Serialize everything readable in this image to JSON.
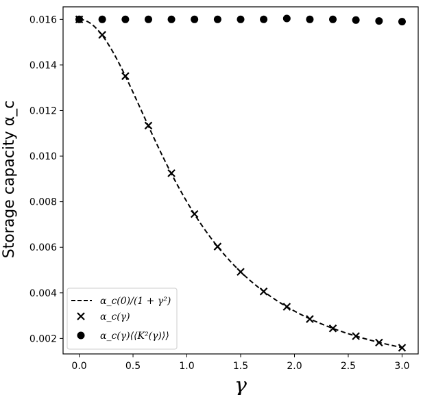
{
  "chart_data": {
    "type": "line",
    "xlabel": "γ",
    "ylabel": "Storage capacity α_c",
    "xlim": [
      -0.15,
      3.15
    ],
    "ylim": [
      0.00132,
      0.01655
    ],
    "x_ticks": [
      "0.0",
      "0.5",
      "1.0",
      "1.5",
      "2.0",
      "2.5",
      "3.0"
    ],
    "x_tick_values": [
      0.0,
      0.5,
      1.0,
      1.5,
      2.0,
      2.5,
      3.0
    ],
    "y_ticks": [
      "0.002",
      "0.004",
      "0.006",
      "0.008",
      "0.010",
      "0.012",
      "0.014",
      "0.016"
    ],
    "y_tick_values": [
      0.002,
      0.004,
      0.006,
      0.008,
      0.01,
      0.012,
      0.014,
      0.016
    ],
    "grid": false,
    "legend_position": "bottom-left",
    "legend": [
      "α_c(0)/(1 + γ²)",
      "α_c(γ)",
      "α_c(γ)⟨⟨K²(γ)⟩⟩"
    ],
    "series": [
      {
        "name": "α_c(0)/(1 + γ²)",
        "style": "dashed-line",
        "color": "#000000",
        "function": "0.016/(1+x^2)",
        "x_range": [
          0.0,
          3.0
        ]
      },
      {
        "name": "α_c(γ)",
        "style": "x-marker",
        "color": "#000000",
        "x": [
          0.0,
          0.214,
          0.429,
          0.643,
          0.857,
          1.071,
          1.286,
          1.5,
          1.714,
          1.929,
          2.143,
          2.357,
          2.571,
          2.786,
          3.0
        ],
        "y": [
          0.016,
          0.01532,
          0.01351,
          0.01134,
          0.00925,
          0.00746,
          0.00603,
          0.00492,
          0.00406,
          0.00339,
          0.00285,
          0.00244,
          0.0021,
          0.00182,
          0.00159
        ]
      },
      {
        "name": "α_c(γ)⟨⟨K²(γ)⟩⟩",
        "style": "circle-marker",
        "color": "#000000",
        "x": [
          0.0,
          0.214,
          0.429,
          0.643,
          0.857,
          1.071,
          1.286,
          1.5,
          1.714,
          1.929,
          2.143,
          2.357,
          2.571,
          2.786,
          3.0
        ],
        "y": [
          0.016,
          0.016,
          0.016,
          0.016,
          0.016,
          0.016,
          0.016,
          0.016,
          0.016,
          0.01604,
          0.016,
          0.016,
          0.01597,
          0.01593,
          0.0159
        ]
      }
    ]
  }
}
